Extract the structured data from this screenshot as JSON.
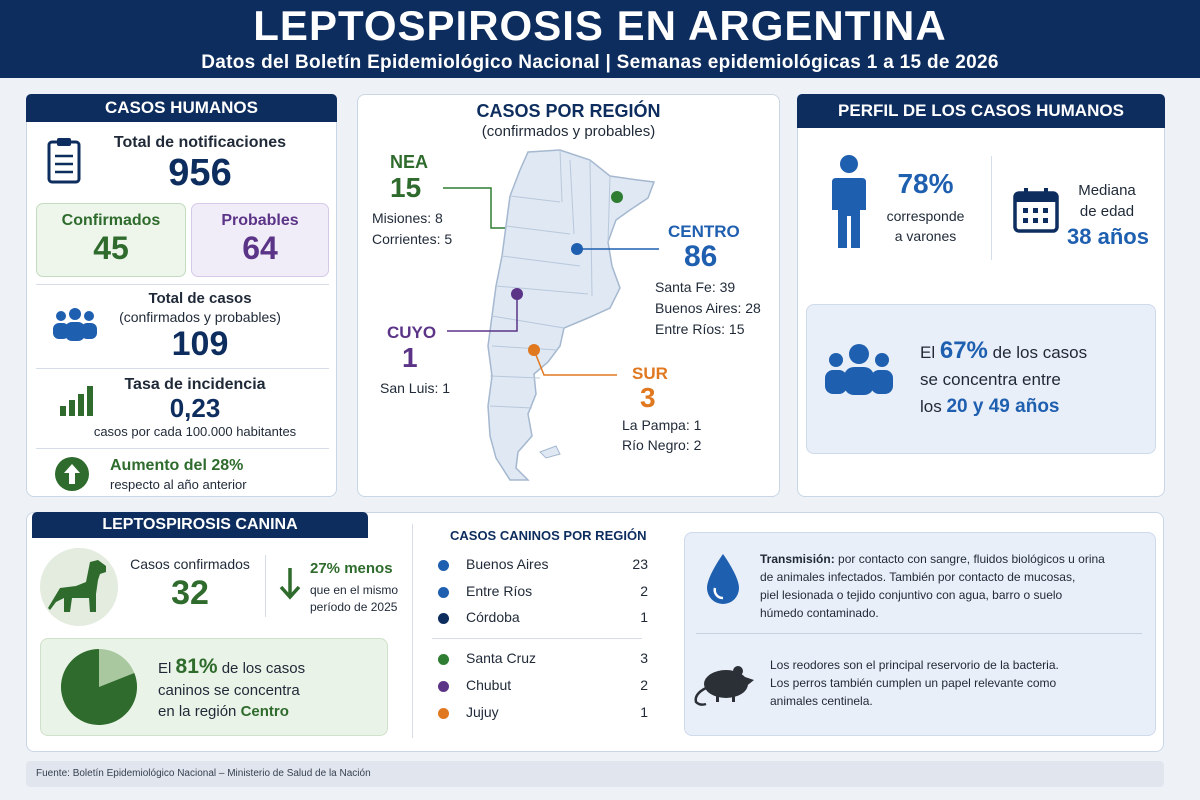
{
  "header": {
    "title": "LEPTOSPIROSIS EN ARGENTINA",
    "subtitle": "Datos del Boletín Epidemiológico Nacional | Semanas epidemiológicas 1 a 15 de 2026"
  },
  "human": {
    "tab": "CASOS HUMANOS",
    "total_label": "Total de notificaciones",
    "total_value": "956",
    "confirmed_label": "Confirmados",
    "confirmed_value": "45",
    "probable_label": "Probables",
    "probable_value": "64",
    "cases_label": "Total de casos",
    "cases_sub": "(confirmados y probables)",
    "cases_value": "109",
    "rate_label": "Tasa de incidencia",
    "rate_value": "0,23",
    "rate_sub": "casos por cada 100.000 habitantes",
    "increase_label": "Aumento del 28%",
    "increase_sub": "respecto al año anterior"
  },
  "map": {
    "title": "CASOS POR REGIÓN",
    "subtitle": "(confirmados y probables)",
    "nea": {
      "name": "NEA",
      "value": "15",
      "lines": [
        "Misiones: 8",
        "Corrientes: 5"
      ]
    },
    "centro": {
      "name": "CENTRO",
      "value": "86",
      "lines": [
        "Santa Fe: 39",
        "Buenos Aires: 28",
        "Entre Ríos: 15"
      ]
    },
    "cuyo": {
      "name": "CUYO",
      "value": "1",
      "lines": [
        "San Luis: 1"
      ]
    },
    "sur": {
      "name": "SUR",
      "value": "3",
      "lines": [
        "La Pampa: 1",
        "Río Negro: 2"
      ]
    }
  },
  "profile": {
    "tab": "PERFIL DE LOS CASOS HUMANOS",
    "male_pct": "78%",
    "male_line1": "corresponde",
    "male_line2": "a varones",
    "age_line1": "Mediana",
    "age_line2": "de edad",
    "age_value": "38 años",
    "conc_pre": "El",
    "conc_pct": "67%",
    "conc_post": "de los casos",
    "conc_line2": "se concentra entre",
    "conc_pre3": "los",
    "conc_range": "20 y 49 años"
  },
  "canine": {
    "tab": "LEPTOSPIROSIS CANINA",
    "confirmed_label": "Casos confirmados",
    "confirmed_value": "32",
    "less_label": "27% menos",
    "less_line1": "que en el mismo",
    "less_line2": "período de 2025",
    "pie_pre": "El",
    "pie_pct": "81%",
    "pie_post": "de los casos",
    "pie_line2": "caninos se concentra",
    "pie_pre3": "en la región",
    "pie_region": "Centro",
    "pie_value": 81
  },
  "canine_regions": {
    "title": "CASOS CANINOS POR REGIÓN",
    "rows": [
      {
        "name": "Buenos Aires",
        "value": "23",
        "color": "#1f5fb0"
      },
      {
        "name": "Entre Ríos",
        "value": "2",
        "color": "#1f5fb0"
      },
      {
        "name": "Córdoba",
        "value": "1",
        "color": "#0d2d5e"
      },
      {
        "name": "Santa Cruz",
        "value": "3",
        "color": "#2e7d32"
      },
      {
        "name": "Chubut",
        "value": "2",
        "color": "#5b3488"
      },
      {
        "name": "Jujuy",
        "value": "1",
        "color": "#e07820"
      }
    ]
  },
  "transmission": {
    "bold": "Transmisión:",
    "text1": " por contacto con sangre, fluidos biológicos u orina",
    "text2": "de animales infectados. También por contacto de mucosas,",
    "text3": "piel lesionada o tejido conjuntivo con agua, barro o suelo",
    "text4": "húmedo contaminado.",
    "rodent1": "Los reodores son el principal reservorio de la bacteria.",
    "rodent2": "Los perros también cumplen un papel relevante como",
    "rodent3": "animales centinela."
  },
  "footer": {
    "source": "Fuente: Boletín Epidemiológico Nacional – Ministerio de Salud de la Nación"
  },
  "colors": {
    "navy": "#0d2d5e",
    "green": "#2e6b2c",
    "purple": "#5b3488",
    "blue": "#1f5fb0",
    "orange": "#e07820"
  }
}
